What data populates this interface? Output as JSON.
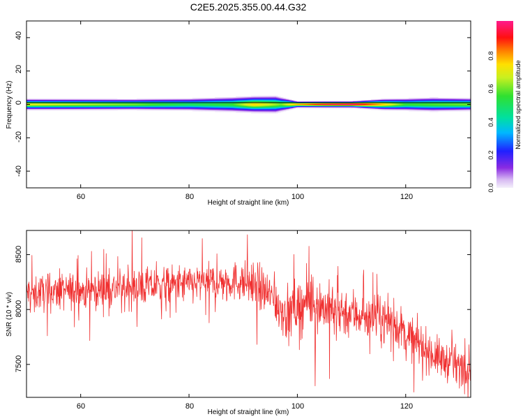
{
  "title": "C2E5.2025.355.00.44.G32",
  "colors": {
    "snr_line": "#f03030",
    "background": "#ffffff",
    "axes": "#000000"
  },
  "chart_data": [
    {
      "type": "heatmap",
      "xlabel": "Height of straight line (km)",
      "ylabel": "Frequency (Hz)",
      "xlim": [
        50,
        132
      ],
      "ylim": [
        -50,
        50
      ],
      "xticks": [
        "60",
        "80",
        "100",
        "120"
      ],
      "yticks": [
        "40",
        "20",
        "0",
        "-20",
        "-40"
      ],
      "colormap": "rainbow (violet → blue → cyan → green → yellow → red → magenta)",
      "band_center_hz": 0,
      "band_halfwidth_hz": [
        [
          50,
          3.5
        ],
        [
          60,
          3.5
        ],
        [
          70,
          3.5
        ],
        [
          80,
          4
        ],
        [
          90,
          5
        ],
        [
          96,
          5.5
        ],
        [
          100,
          2
        ],
        [
          110,
          2
        ],
        [
          116,
          3.5
        ],
        [
          125,
          4.5
        ],
        [
          132,
          4
        ]
      ],
      "core_amplitude": [
        [
          50,
          0.7
        ],
        [
          60,
          0.65
        ],
        [
          70,
          0.6
        ],
        [
          80,
          0.5
        ],
        [
          88,
          0.55
        ],
        [
          92,
          0.75
        ],
        [
          97,
          0.6
        ],
        [
          100,
          0.8
        ],
        [
          105,
          0.95
        ],
        [
          110,
          1.0
        ],
        [
          115,
          0.8
        ],
        [
          120,
          0.55
        ],
        [
          132,
          0.6
        ]
      ],
      "colorbar": {
        "label": "Normalized spectral amplitude",
        "range": [
          0,
          1
        ],
        "ticks": [
          "0.0",
          "0.2",
          "0.4",
          "0.6",
          "0.8"
        ]
      }
    },
    {
      "type": "line",
      "xlabel": "Height of straight line (km)",
      "ylabel": "SNR (10 * v/v)",
      "xlim": [
        50,
        132
      ],
      "ylim": [
        7200,
        8720
      ],
      "xticks": [
        "60",
        "80",
        "100",
        "120"
      ],
      "yticks": [
        "8500",
        "8000",
        "7500"
      ],
      "mean_trend": [
        [
          50,
          8150
        ],
        [
          60,
          8170
        ],
        [
          70,
          8200
        ],
        [
          80,
          8230
        ],
        [
          88,
          8260
        ],
        [
          92,
          8240
        ],
        [
          95,
          8120
        ],
        [
          98,
          7960
        ],
        [
          102,
          8080
        ],
        [
          106,
          8000
        ],
        [
          110,
          7970
        ],
        [
          115,
          7920
        ],
        [
          118,
          7870
        ],
        [
          122,
          7700
        ],
        [
          126,
          7560
        ],
        [
          130,
          7480
        ],
        [
          132,
          7520
        ]
      ],
      "noise_amplitude": [
        [
          50,
          150
        ],
        [
          90,
          160
        ],
        [
          94,
          190
        ],
        [
          100,
          230
        ],
        [
          115,
          190
        ],
        [
          122,
          170
        ],
        [
          132,
          150
        ]
      ],
      "sample_count": 1300
    }
  ]
}
